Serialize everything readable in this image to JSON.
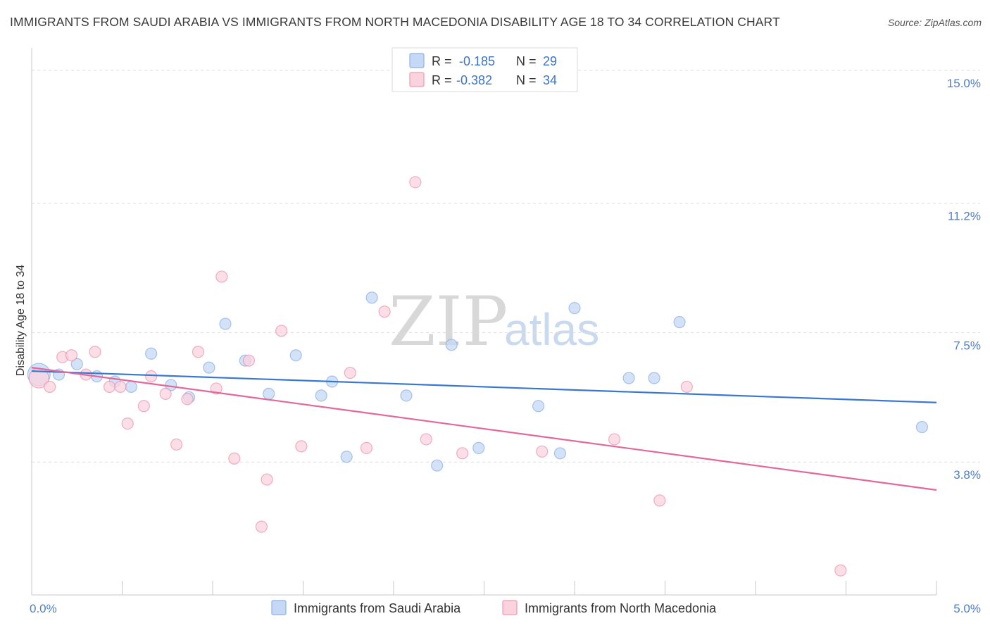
{
  "title": "IMMIGRANTS FROM SAUDI ARABIA VS IMMIGRANTS FROM NORTH MACEDONIA DISABILITY AGE 18 TO 34 CORRELATION CHART",
  "source": "Source: ZipAtlas.com",
  "watermark": {
    "zip": "ZIP",
    "atlas": "atlas"
  },
  "stats": [
    {
      "r_label": "R =",
      "r_value": "-0.185",
      "n_label": "N =",
      "n_value": "29",
      "color": "#a9c7f0"
    },
    {
      "r_label": "R =",
      "r_value": "-0.382",
      "n_label": "N =",
      "n_value": "34",
      "color": "#f7b5c7"
    }
  ],
  "chart_data": {
    "type": "scatter",
    "ylabel": "Disability Age 18 to 34",
    "xlim": [
      0.0,
      5.0
    ],
    "ylim": [
      0.0,
      15.4
    ],
    "x_ticks": [
      {
        "value": 0.0,
        "label": "0.0%"
      },
      {
        "value": 5.0,
        "label": "5.0%"
      }
    ],
    "y_ticks": [
      {
        "value": 3.8,
        "label": "3.8%"
      },
      {
        "value": 7.5,
        "label": "7.5%"
      },
      {
        "value": 11.2,
        "label": "11.2%"
      },
      {
        "value": 15.0,
        "label": "15.0%"
      }
    ],
    "grid": "horizontal dashed",
    "legend_position": "bottom-center",
    "series": [
      {
        "name": "Immigrants from Saudi Arabia",
        "color": "#6b9be0",
        "fill": "#c5d8f5",
        "trend": [
          [
            0.0,
            6.4
          ],
          [
            5.0,
            5.5
          ]
        ],
        "points": [
          [
            0.04,
            6.3,
            16
          ],
          [
            0.15,
            6.3,
            8
          ],
          [
            0.25,
            6.6,
            8
          ],
          [
            0.36,
            6.25,
            8
          ],
          [
            0.46,
            6.1,
            8
          ],
          [
            0.55,
            5.95,
            8
          ],
          [
            0.66,
            6.9,
            8
          ],
          [
            0.77,
            6.0,
            8
          ],
          [
            0.87,
            5.65,
            8
          ],
          [
            0.98,
            6.5,
            8
          ],
          [
            1.07,
            7.75,
            8
          ],
          [
            1.18,
            6.7,
            8
          ],
          [
            1.31,
            5.75,
            8
          ],
          [
            1.46,
            6.85,
            8
          ],
          [
            1.6,
            5.7,
            8
          ],
          [
            1.66,
            6.1,
            8
          ],
          [
            1.74,
            3.95,
            8
          ],
          [
            1.88,
            8.5,
            8
          ],
          [
            2.07,
            5.7,
            8
          ],
          [
            2.24,
            3.7,
            8
          ],
          [
            2.32,
            7.15,
            8
          ],
          [
            2.47,
            4.2,
            8
          ],
          [
            2.8,
            5.4,
            8
          ],
          [
            2.92,
            4.05,
            8
          ],
          [
            3.0,
            8.2,
            8
          ],
          [
            3.3,
            6.2,
            8
          ],
          [
            3.44,
            6.2,
            8
          ],
          [
            3.58,
            7.8,
            8
          ],
          [
            4.92,
            4.8,
            8
          ]
        ]
      },
      {
        "name": "Immigrants from North Macedonia",
        "color": "#e8739a",
        "fill": "#fbd3df",
        "trend": [
          [
            0.0,
            6.5
          ],
          [
            5.0,
            3.0
          ]
        ],
        "points": [
          [
            0.04,
            6.2,
            14
          ],
          [
            0.1,
            5.95,
            8
          ],
          [
            0.17,
            6.8,
            8
          ],
          [
            0.22,
            6.85,
            8
          ],
          [
            0.3,
            6.3,
            8
          ],
          [
            0.35,
            6.95,
            8
          ],
          [
            0.43,
            5.95,
            8
          ],
          [
            0.49,
            5.95,
            8
          ],
          [
            0.53,
            4.9,
            8
          ],
          [
            0.62,
            5.4,
            8
          ],
          [
            0.66,
            6.25,
            8
          ],
          [
            0.74,
            5.75,
            8
          ],
          [
            0.8,
            4.3,
            8
          ],
          [
            0.86,
            5.6,
            8
          ],
          [
            0.92,
            6.95,
            8
          ],
          [
            1.02,
            5.9,
            8
          ],
          [
            1.05,
            9.1,
            8
          ],
          [
            1.12,
            3.9,
            8
          ],
          [
            1.2,
            6.7,
            8
          ],
          [
            1.27,
            1.95,
            8
          ],
          [
            1.3,
            3.3,
            8
          ],
          [
            1.38,
            7.55,
            8
          ],
          [
            1.49,
            4.25,
            8
          ],
          [
            1.76,
            6.35,
            8
          ],
          [
            1.85,
            4.2,
            8
          ],
          [
            1.95,
            8.1,
            8
          ],
          [
            2.12,
            11.8,
            8
          ],
          [
            2.18,
            4.45,
            8
          ],
          [
            2.38,
            4.05,
            8
          ],
          [
            2.82,
            4.1,
            8
          ],
          [
            3.22,
            4.45,
            8
          ],
          [
            3.47,
            2.7,
            8
          ],
          [
            3.62,
            5.95,
            8
          ],
          [
            4.47,
            0.7,
            8
          ]
        ]
      }
    ]
  }
}
